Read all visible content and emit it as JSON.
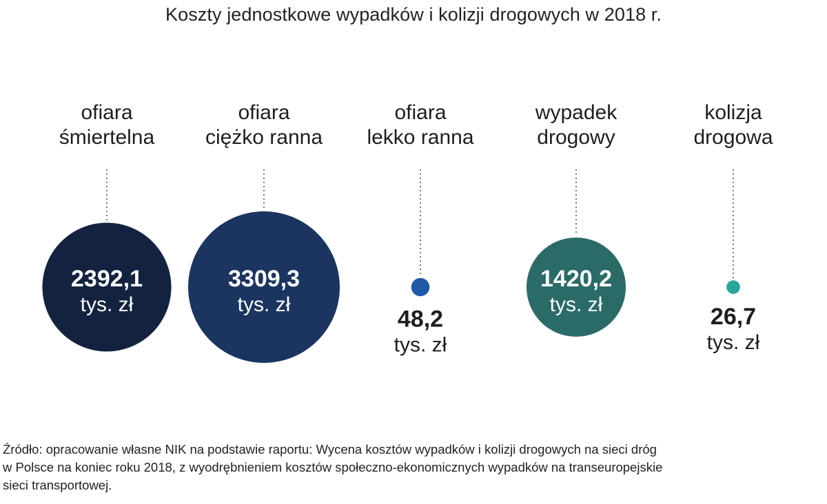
{
  "title": "Koszty jednostkowe wypadków i kolizji drogowych w 2018 r.",
  "source_lines": [
    "Źródło: opracowanie własne NIK na podstawie raportu: Wycena kosztów wypadków i kolizji drogowych na sieci dróg",
    "w Polsce na koniec roku 2018, z wyodrębnieniem kosztów społeczno-ekonomicznych wypadków na transeuropejskie",
    "sieci transportowej."
  ],
  "chart_data": {
    "type": "bubble",
    "title": "Koszty jednostkowe wypadków i kolizji drogowych w 2018 r.",
    "unit": "tys. zł",
    "categories": [
      [
        "ofiara",
        "śmiertelna"
      ],
      [
        "ofiara",
        "ciężko ranna"
      ],
      [
        "ofiara",
        "lekko ranna"
      ],
      [
        "wypadek",
        "drogowy"
      ],
      [
        "kolizja",
        "drogowa"
      ]
    ],
    "values": [
      2392.1,
      3309.3,
      48.2,
      1420.2,
      26.7
    ],
    "value_labels": [
      "2392,1",
      "3309,3",
      "48,2",
      "1420,2",
      "26,7"
    ],
    "unit_labels": [
      "tys. zł",
      "tys. zł",
      "tys. zł",
      "tys. zł",
      "tys. zł"
    ],
    "colors": [
      "#13233f",
      "#1b3560",
      "#1f5aa6",
      "#2a6b68",
      "#2aa79b"
    ]
  }
}
